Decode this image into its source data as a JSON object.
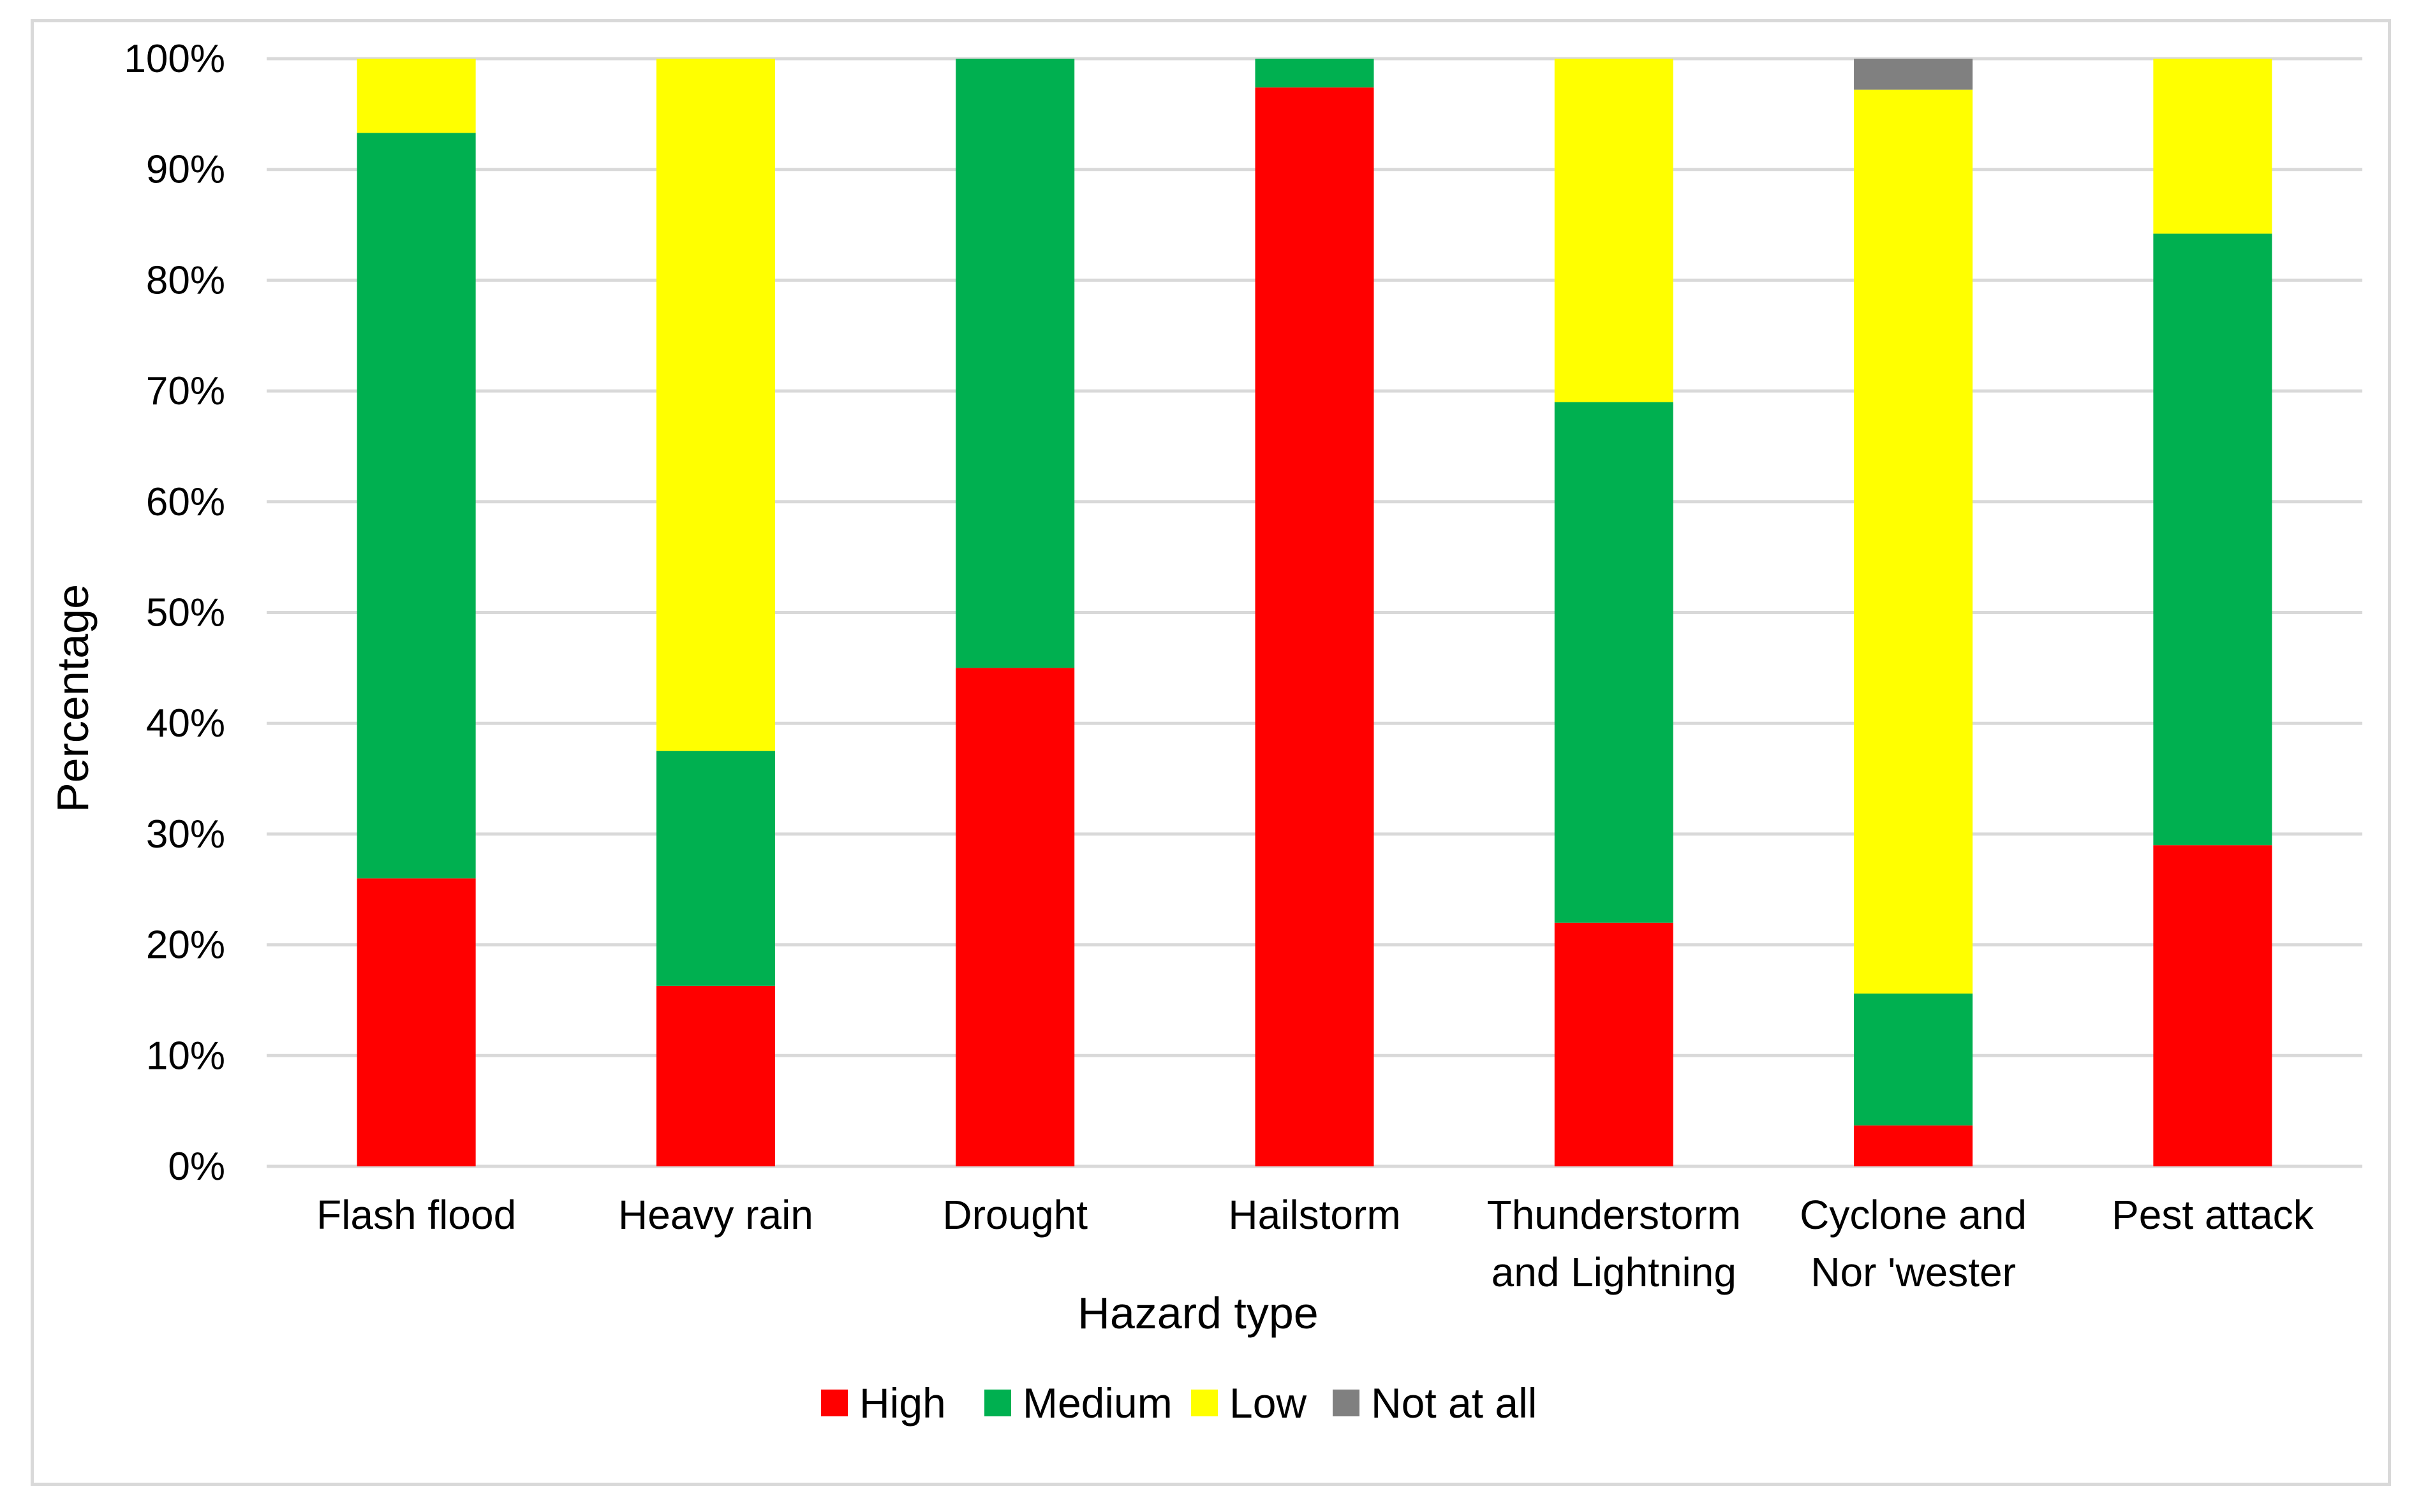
{
  "chart_data": {
    "type": "bar",
    "stacked": true,
    "title": "",
    "xlabel": "Hazard type",
    "ylabel": "Percentage",
    "ylim": [
      0,
      100
    ],
    "yticks": [
      0,
      10,
      20,
      30,
      40,
      50,
      60,
      70,
      80,
      90,
      100
    ],
    "ytick_labels": [
      "0%",
      "10%",
      "20%",
      "30%",
      "40%",
      "50%",
      "60%",
      "70%",
      "80%",
      "90%",
      "100%"
    ],
    "grid": true,
    "legend_position": "bottom",
    "categories": [
      [
        "Flash flood"
      ],
      [
        "Heavy rain"
      ],
      [
        "Drought"
      ],
      [
        "Hailstorm"
      ],
      [
        "Thunderstorm",
        "and Lightning"
      ],
      [
        "Cyclone and",
        "Nor 'wester"
      ],
      [
        "Pest attack"
      ]
    ],
    "series": [
      {
        "name": "High",
        "color": "#ff0000",
        "values": [
          26,
          16.3,
          45,
          97.4,
          22,
          3.7,
          29
        ]
      },
      {
        "name": "Medium",
        "color": "#00b050",
        "values": [
          67.3,
          21.2,
          55,
          2.6,
          47,
          11.9,
          55.2
        ]
      },
      {
        "name": "Low",
        "color": "#ffff00",
        "values": [
          6.7,
          62.5,
          0,
          0,
          31,
          81.6,
          15.8
        ]
      },
      {
        "name": "Not at all",
        "color": "#808080",
        "values": [
          0,
          0,
          0,
          0,
          0,
          2.8,
          0
        ]
      }
    ]
  }
}
